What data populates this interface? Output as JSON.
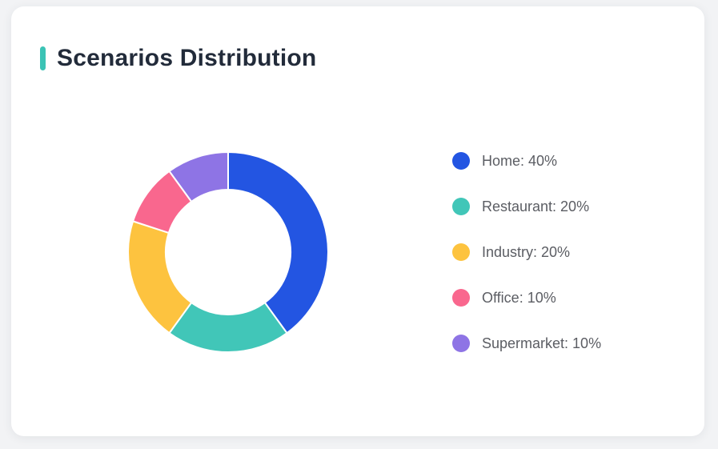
{
  "card": {
    "title": "Scenarios Distribution",
    "accent_color": "#3bc3b5"
  },
  "chart_data": {
    "type": "pie",
    "variant": "donut",
    "title": "Scenarios Distribution",
    "categories": [
      "Home",
      "Restaurant",
      "Industry",
      "Office",
      "Supermarket"
    ],
    "values": [
      40,
      20,
      20,
      10,
      10
    ],
    "unit": "%",
    "colors": [
      "#2355e2",
      "#41c6b8",
      "#fdc33f",
      "#f9678e",
      "#8e74e5"
    ],
    "start_angle_deg": 0,
    "direction": "clockwise",
    "inner_radius_ratio": 0.62,
    "slice_gap_color": "#ffffff",
    "legend_position": "right",
    "center_label": ""
  },
  "legend": {
    "items": [
      {
        "label": "Home: 40%",
        "color": "#2355e2"
      },
      {
        "label": "Restaurant: 20%",
        "color": "#41c6b8"
      },
      {
        "label": "Industry: 20%",
        "color": "#fdc33f"
      },
      {
        "label": "Office: 10%",
        "color": "#f9678e"
      },
      {
        "label": "Supermarket: 10%",
        "color": "#8e74e5"
      }
    ]
  }
}
